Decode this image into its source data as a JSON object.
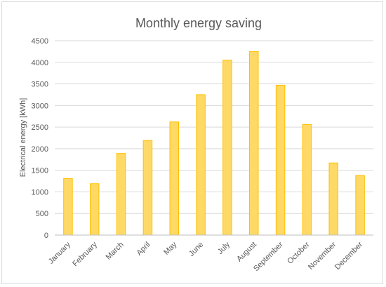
{
  "chart_data": {
    "type": "bar",
    "title": "Monthly energy saving",
    "xlabel": "",
    "ylabel": "Electrical energy [kWh]",
    "categories": [
      "January",
      "February",
      "March",
      "April",
      "May",
      "June",
      "July",
      "August",
      "September",
      "October",
      "November",
      "December"
    ],
    "values": [
      1310,
      1190,
      1890,
      2190,
      2620,
      3250,
      4050,
      4250,
      3470,
      2560,
      1670,
      1380
    ],
    "ylim": [
      0,
      4500
    ],
    "yticks": [
      "0",
      "500",
      "1000",
      "1500",
      "2000",
      "2500",
      "3000",
      "3500",
      "4000",
      "4500"
    ],
    "grid": true,
    "legend": "none",
    "colors": {
      "bar_fill": "#ffd966",
      "bar_stroke": "#ffc000"
    }
  }
}
